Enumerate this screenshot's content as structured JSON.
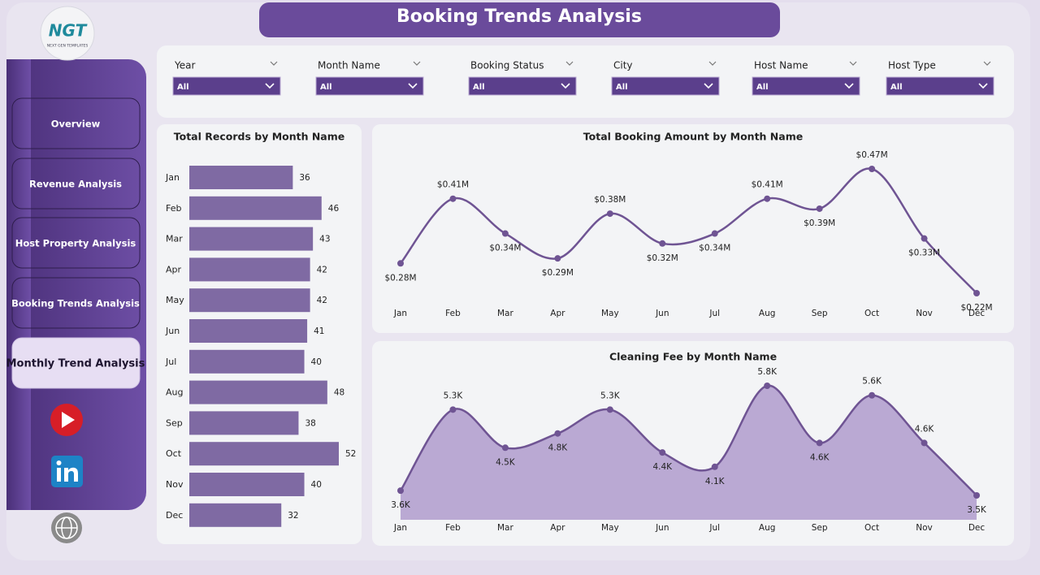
{
  "header": {
    "title": "Booking Trends Analysis",
    "logo": "NGT",
    "logo_sub": "NEXT GEN TEMPLATES"
  },
  "nav": [
    "Overview",
    "Revenue Analysis",
    "Host Property Analysis",
    "Booking Trends Analysis",
    "Monthly Trend Analysis"
  ],
  "filters": [
    {
      "label": "Year",
      "value": "All"
    },
    {
      "label": "Month Name",
      "value": "All"
    },
    {
      "label": "Booking Status",
      "value": "All"
    },
    {
      "label": "City",
      "value": "All"
    },
    {
      "label": "Host Name",
      "value": "All"
    },
    {
      "label": "Host Type",
      "value": "All"
    }
  ],
  "chart_data": [
    {
      "type": "bar",
      "orientation": "horizontal",
      "title": "Total Records by Month Name",
      "categories": [
        "Jan",
        "Feb",
        "Mar",
        "Apr",
        "May",
        "Jun",
        "Jul",
        "Aug",
        "Sep",
        "Oct",
        "Nov",
        "Dec"
      ],
      "values": [
        36,
        46,
        43,
        42,
        42,
        41,
        40,
        48,
        38,
        52,
        40,
        32
      ],
      "color": "#7f6aa3"
    },
    {
      "type": "line",
      "title": "Total Booking Amount by Month Name",
      "categories": [
        "Jan",
        "Feb",
        "Mar",
        "Apr",
        "May",
        "Jun",
        "Jul",
        "Aug",
        "Sep",
        "Oct",
        "Nov",
        "Dec"
      ],
      "values": [
        280000,
        410000,
        340000,
        290000,
        380000,
        320000,
        340000,
        410000,
        390000,
        470000,
        330000,
        220000
      ],
      "value_labels": [
        "$0.28M",
        "$0.41M",
        "$0.34M",
        "$0.29M",
        "$0.38M",
        "$0.32M",
        "$0.34M",
        "$0.41M",
        "$0.39M",
        "$0.47M",
        "$0.33M",
        "$0.22M"
      ],
      "color": "#6f5493"
    },
    {
      "type": "area",
      "title": "Cleaning Fee by Month Name",
      "categories": [
        "Jan",
        "Feb",
        "Mar",
        "Apr",
        "May",
        "Jun",
        "Jul",
        "Aug",
        "Sep",
        "Oct",
        "Nov",
        "Dec"
      ],
      "values": [
        3600,
        5300,
        4500,
        4800,
        5300,
        4400,
        4100,
        5800,
        4600,
        5600,
        4600,
        3500
      ],
      "value_labels": [
        "3.6K",
        "5.3K",
        "4.5K",
        "4.8K",
        "5.3K",
        "4.4K",
        "4.1K",
        "5.8K",
        "4.6K",
        "5.6K",
        "4.6K",
        "3.5K"
      ],
      "color": "#6f5493",
      "fill": "#baa9d3"
    }
  ]
}
